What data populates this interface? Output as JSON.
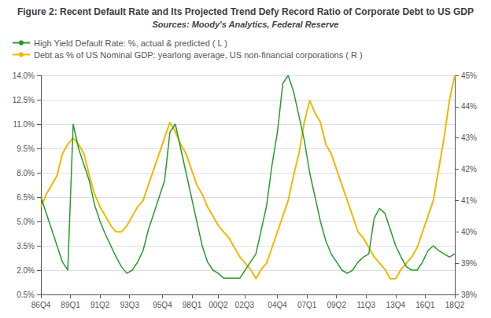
{
  "chart_data": {
    "type": "line",
    "title": "Figure 2: Recent Default Rate and Its Projected Trend Defy Record Ratio of Corporate Debt to US GDP",
    "subtitle": "Sources: Moody's Analytics, Federal Reserve",
    "x": [
      0,
      1.6364,
      3.2727,
      4.9091,
      6.5455,
      8.1818,
      9.8182,
      11.4545,
      13.0909,
      14.7273,
      16.3636,
      18,
      19.6364,
      21.2727,
      22.9091,
      24.5455,
      26.1818,
      27.8182,
      29.4545,
      31.0909,
      32.7273,
      34.3636,
      36,
      37.6364,
      39.2727,
      40.9091,
      42.5455,
      44.1818,
      45.8182,
      47.4545,
      49.0909,
      50.7273,
      52.3636,
      54,
      55.6364,
      57.2727,
      58.9091,
      60.5455,
      62.1818,
      63.8182,
      65.4545,
      67.0909,
      68.7273,
      70.3636,
      72,
      73.6364,
      75.2727,
      76.9091,
      78.5455,
      80.1818,
      81.8182,
      83.4545,
      85.0909,
      86.7273,
      88.3636,
      90,
      91.6364,
      93.2727,
      94.9091,
      96.5455,
      98.1818,
      99.8182,
      101.4545,
      103.0909,
      104.7273,
      106.3636,
      108,
      109.6364,
      111.2727,
      112.9091,
      114.5455,
      116.1818,
      117.8182,
      119.4545,
      121.0909,
      122.7273,
      124.3636,
      126
    ],
    "xlim": [
      0,
      126
    ],
    "xticks": [
      {
        "value": 0,
        "label": "86Q4"
      },
      {
        "value": 9,
        "label": "89Q1"
      },
      {
        "value": 18,
        "label": "91Q2"
      },
      {
        "value": 27,
        "label": "93Q3"
      },
      {
        "value": 37,
        "label": "95Q4"
      },
      {
        "value": 46,
        "label": "98Q1"
      },
      {
        "value": 54,
        "label": "00Q2"
      },
      {
        "value": 62,
        "label": "02Q3"
      },
      {
        "value": 72,
        "label": "04Q4"
      },
      {
        "value": 81,
        "label": "07Q1"
      },
      {
        "value": 90,
        "label": "09Q2"
      },
      {
        "value": 99,
        "label": "11Q3"
      },
      {
        "value": 108,
        "label": "13Q4"
      },
      {
        "value": 117,
        "label": "16Q1"
      },
      {
        "value": 126,
        "label": "18Q2"
      }
    ],
    "ylim": [
      0.5,
      14.0
    ],
    "yticks": [
      {
        "value": 0.5,
        "label": "0.5%"
      },
      {
        "value": 2.0,
        "label": "2.0%"
      },
      {
        "value": 3.5,
        "label": "3.5%"
      },
      {
        "value": 5.0,
        "label": "5.0%"
      },
      {
        "value": 6.5,
        "label": "6.5%"
      },
      {
        "value": 8.0,
        "label": "8.0%"
      },
      {
        "value": 9.5,
        "label": "9.5%"
      },
      {
        "value": 11.0,
        "label": "11.0%"
      },
      {
        "value": 12.5,
        "label": "12.5%"
      },
      {
        "value": 14.0,
        "label": "14.0%"
      }
    ],
    "y2lim": [
      38,
      45
    ],
    "y2ticks": [
      {
        "value": 38,
        "label": "38%"
      },
      {
        "value": 39,
        "label": "39%"
      },
      {
        "value": 40,
        "label": "40%"
      },
      {
        "value": 41,
        "label": "41%"
      },
      {
        "value": 42,
        "label": "42%"
      },
      {
        "value": 43,
        "label": "43%"
      },
      {
        "value": 44,
        "label": "44%"
      },
      {
        "value": 45,
        "label": "45%"
      }
    ],
    "grid": true,
    "legend": "upper left",
    "series": [
      {
        "name": "High Yield Default Rate: %, actual & predicted ( L )",
        "color": "#2a9a2a",
        "axis": "y",
        "values": [
          6.5,
          5.5,
          4.5,
          3.5,
          2.5,
          2.0,
          11.0,
          9.5,
          8.5,
          7.5,
          6.0,
          5.0,
          4.2,
          3.5,
          2.8,
          2.2,
          1.8,
          2.0,
          2.5,
          3.2,
          4.5,
          5.5,
          6.5,
          7.5,
          10.5,
          11.0,
          9.5,
          8.0,
          6.5,
          5.0,
          3.5,
          2.5,
          2.0,
          1.8,
          1.5,
          1.5,
          1.5,
          1.5,
          2.0,
          2.5,
          3.0,
          4.5,
          6.0,
          8.5,
          10.5,
          13.5,
          14.0,
          13.0,
          11.5,
          10.0,
          8.0,
          6.5,
          5.0,
          3.8,
          3.0,
          2.5,
          2.0,
          1.8,
          2.0,
          2.5,
          2.8,
          3.0,
          5.2,
          5.8,
          5.5,
          4.5,
          3.5,
          2.8,
          2.2,
          2.0,
          2.0,
          2.5,
          3.2,
          3.5,
          3.2,
          3.0,
          2.8,
          3.0
        ]
      },
      {
        "name": "Debt as % of US Nominal GDP: yearlong average, US non-financial corporations ( R )",
        "color": "#f0b800",
        "axis": "y2",
        "values": [
          40.8,
          41.2,
          41.5,
          41.8,
          42.5,
          42.8,
          43.0,
          42.8,
          42.5,
          41.8,
          41.2,
          40.8,
          40.5,
          40.2,
          40.0,
          40.0,
          40.2,
          40.5,
          40.8,
          41.0,
          41.5,
          42.0,
          42.5,
          43.0,
          43.5,
          43.2,
          42.8,
          42.5,
          42.0,
          41.5,
          41.2,
          40.8,
          40.5,
          40.2,
          40.0,
          39.8,
          39.5,
          39.2,
          39.0,
          38.8,
          38.5,
          38.8,
          39.0,
          39.5,
          40.0,
          40.5,
          41.0,
          41.8,
          42.5,
          43.5,
          44.2,
          43.8,
          43.5,
          42.8,
          42.5,
          42.0,
          41.5,
          41.0,
          40.5,
          40.0,
          39.8,
          39.5,
          39.2,
          39.0,
          38.8,
          38.5,
          38.5,
          38.8,
          39.0,
          39.2,
          39.5,
          40.0,
          40.5,
          41.0,
          42.0,
          43.0,
          44.2,
          45.0
        ]
      }
    ]
  }
}
